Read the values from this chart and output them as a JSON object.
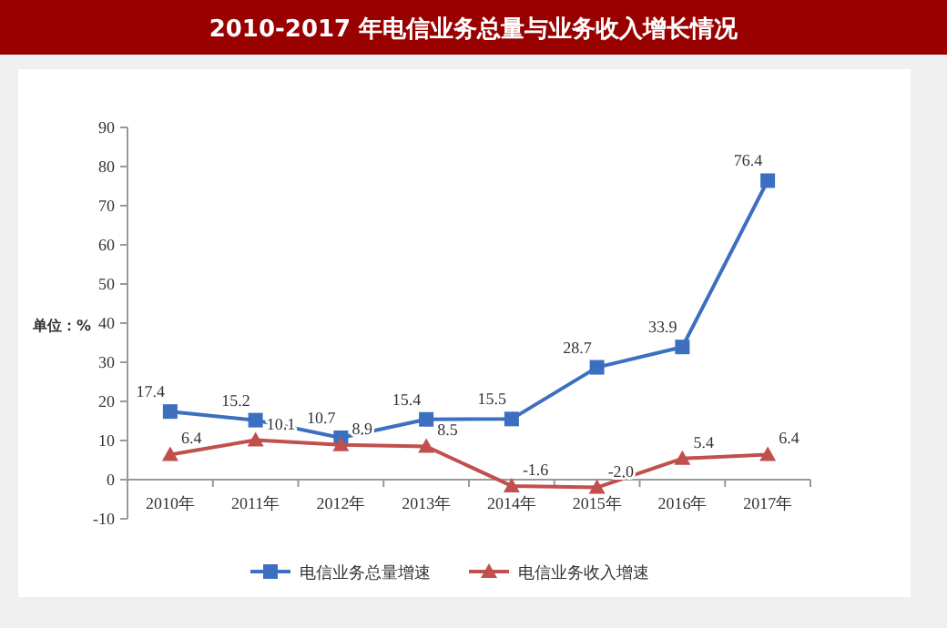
{
  "chart_data": {
    "type": "line",
    "title": "2010-2017 年电信业务总量与业务收入增长情况",
    "ylabel": "单位：%",
    "categories": [
      "2010年",
      "2011年",
      "2012年",
      "2013年",
      "2014年",
      "2015年",
      "2016年",
      "2017年"
    ],
    "series": [
      {
        "name": "电信业务总量增速",
        "color": "#3c6fbf",
        "marker": "square",
        "values": [
          17.4,
          15.2,
          10.7,
          15.4,
          15.5,
          28.7,
          33.9,
          76.4
        ],
        "value_labels": [
          "17.4",
          "15.2",
          "10.7",
          "15.4",
          "15.5",
          "28.7",
          "33.9",
          "76.4"
        ]
      },
      {
        "name": "电信业务收入增速",
        "color": "#c0504d",
        "marker": "triangle",
        "values": [
          6.4,
          10.1,
          8.9,
          8.5,
          -1.6,
          -2.0,
          5.4,
          6.4
        ],
        "value_labels": [
          "6.4",
          "10.1",
          "8.9",
          "8.5",
          "-1.6",
          "-2.0",
          "5.4",
          "6.4"
        ]
      }
    ],
    "ylim": [
      -10,
      90
    ],
    "yticks": [
      -10,
      0,
      10,
      20,
      30,
      40,
      50,
      60,
      70,
      80,
      90
    ],
    "grid": false,
    "legend": "bottom"
  }
}
